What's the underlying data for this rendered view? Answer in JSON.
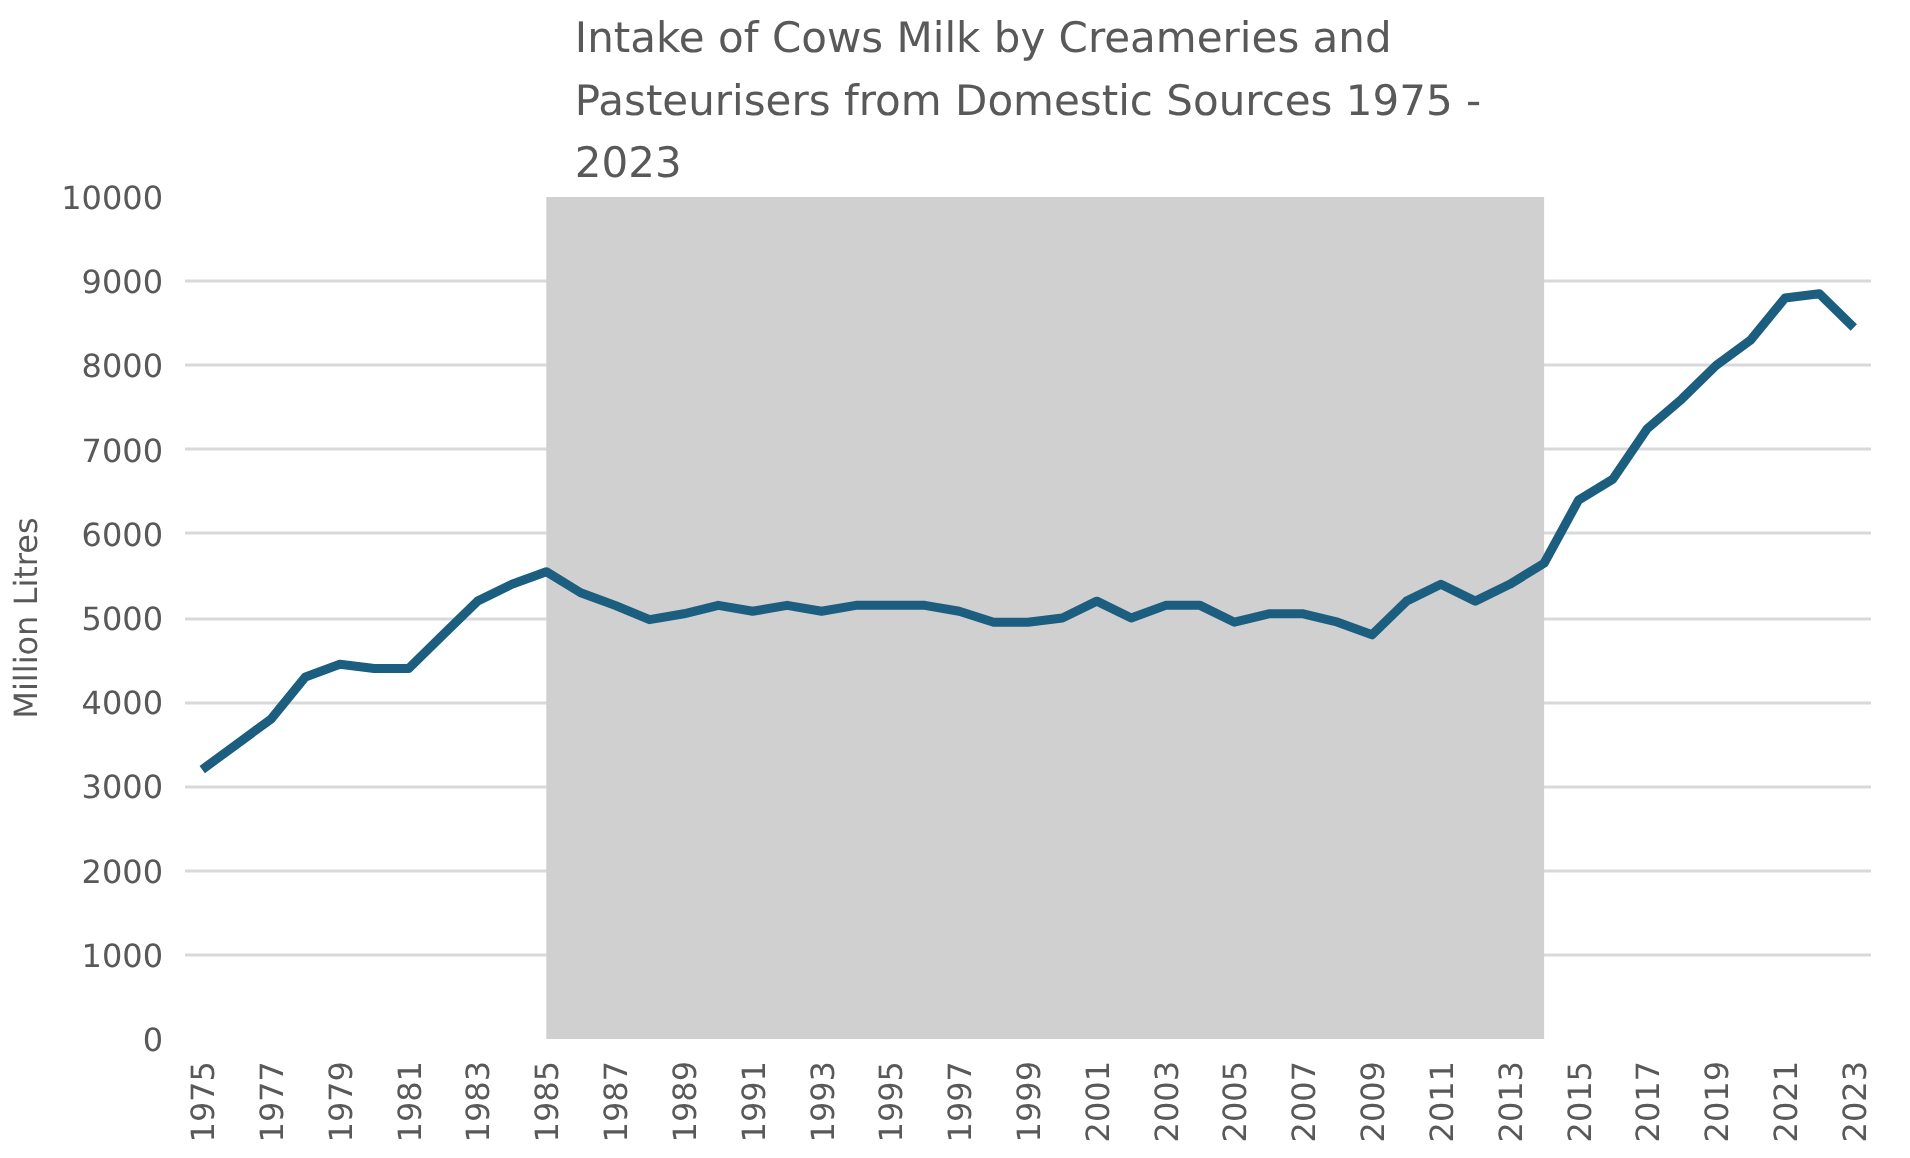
{
  "chart_data": {
    "type": "line",
    "title": "Intake of Cows Milk by Creameries and Pasteurisers from Domestic Sources 1975 - 2023",
    "ylabel": "Million Litres",
    "x": [
      1975,
      1976,
      1977,
      1978,
      1979,
      1980,
      1981,
      1982,
      1983,
      1984,
      1985,
      1986,
      1987,
      1988,
      1989,
      1990,
      1991,
      1992,
      1993,
      1994,
      1995,
      1996,
      1997,
      1998,
      1999,
      2000,
      2001,
      2002,
      2003,
      2004,
      2005,
      2006,
      2007,
      2008,
      2009,
      2010,
      2011,
      2012,
      2013,
      2014,
      2015,
      2016,
      2017,
      2018,
      2019,
      2020,
      2021,
      2022,
      2023
    ],
    "series": [
      {
        "color": "#1b5e80",
        "values": [
          3200,
          3500,
          3800,
          4300,
          4450,
          4400,
          4400,
          4800,
          5200,
          5400,
          5550,
          5300,
          5150,
          4980,
          5050,
          5150,
          5080,
          5150,
          5080,
          5150,
          5150,
          5150,
          5080,
          4950,
          4950,
          5000,
          5200,
          5000,
          5150,
          5150,
          4950,
          5050,
          5050,
          4950,
          4800,
          5200,
          5400,
          5200,
          5400,
          5650,
          6400,
          6650,
          7250,
          7600,
          8000,
          8300,
          8800,
          8850,
          8450
        ]
      }
    ],
    "xlim": [
      1974.5,
      2023.5
    ],
    "xticks": [
      1975,
      1977,
      1979,
      1981,
      1983,
      1985,
      1987,
      1989,
      1991,
      1993,
      1995,
      1997,
      1999,
      2001,
      2003,
      2005,
      2007,
      2009,
      2011,
      2013,
      2015,
      2017,
      2019,
      2021,
      2023
    ],
    "ylim": [
      0,
      10000
    ],
    "yticks": [
      0,
      1000,
      2000,
      3000,
      4000,
      5000,
      6000,
      7000,
      8000,
      9000,
      10000
    ],
    "bands": [
      {
        "axis": "x",
        "from": 1985,
        "to": 2014,
        "color": "#d0d0d0"
      }
    ],
    "grid": "y",
    "marker": "none",
    "line_style": "solid"
  }
}
